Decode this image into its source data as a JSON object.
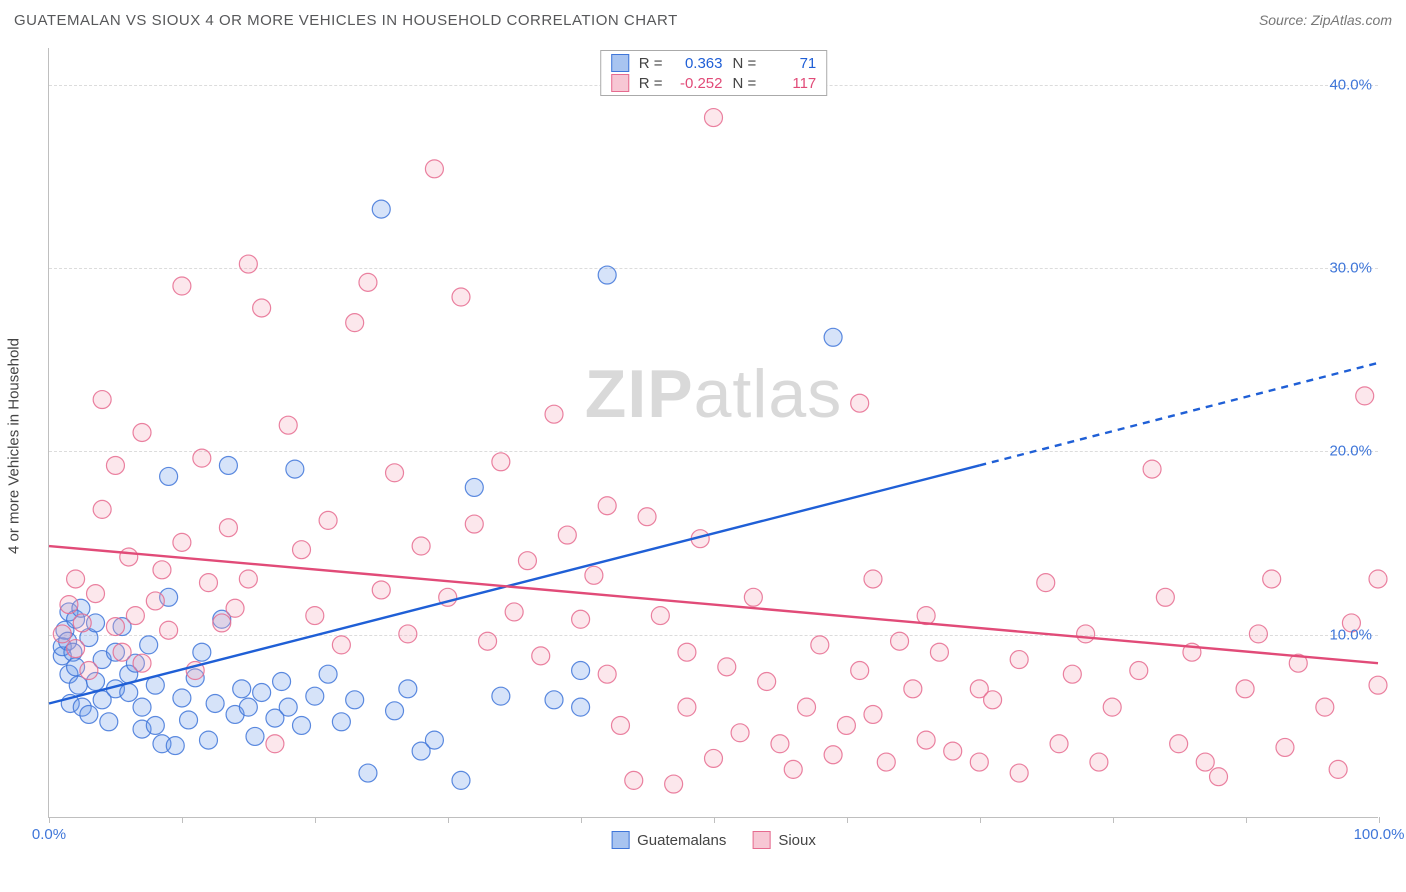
{
  "title": "GUATEMALAN VS SIOUX 4 OR MORE VEHICLES IN HOUSEHOLD CORRELATION CHART",
  "source": "Source: ZipAtlas.com",
  "ylabel": "4 or more Vehicles in Household",
  "watermark": {
    "bold": "ZIP",
    "light": "atlas"
  },
  "chart": {
    "type": "scatter",
    "background_color": "#ffffff",
    "grid_color": "#dcdcdc",
    "axis_color": "#bfbfbf",
    "xlim": [
      0,
      100
    ],
    "ylim": [
      0,
      42
    ],
    "xticks": [
      0,
      10,
      20,
      30,
      40,
      50,
      60,
      70,
      80,
      90,
      100
    ],
    "xtick_labels_shown": {
      "0": "0.0%",
      "100": "100.0%"
    },
    "yticks": [
      10,
      20,
      30,
      40
    ],
    "ytick_labels": {
      "10": "10.0%",
      "20": "20.0%",
      "30": "30.0%",
      "40": "40.0%"
    },
    "tick_label_color": "#3f76d9",
    "tick_label_fontsize": 15,
    "marker_radius": 9,
    "marker_fill_opacity": 0.28,
    "marker_stroke_opacity": 0.85,
    "marker_stroke_width": 1.2,
    "series": [
      {
        "name": "Guatemalans",
        "color": "#6a9ae8",
        "stroke": "#3f76d9",
        "points": [
          [
            1,
            8.8
          ],
          [
            1,
            9.3
          ],
          [
            1.2,
            10.2
          ],
          [
            1.4,
            9.6
          ],
          [
            1.5,
            11.2
          ],
          [
            1.5,
            7.8
          ],
          [
            1.6,
            6.2
          ],
          [
            1.8,
            9.0
          ],
          [
            2,
            8.2
          ],
          [
            2,
            10.8
          ],
          [
            2.2,
            7.2
          ],
          [
            2.4,
            11.4
          ],
          [
            2.5,
            6.0
          ],
          [
            3,
            5.6
          ],
          [
            3,
            9.8
          ],
          [
            3.5,
            7.4
          ],
          [
            3.5,
            10.6
          ],
          [
            4,
            6.4
          ],
          [
            4,
            8.6
          ],
          [
            4.5,
            5.2
          ],
          [
            5,
            7.0
          ],
          [
            5,
            9.0
          ],
          [
            5.5,
            10.4
          ],
          [
            6,
            6.8
          ],
          [
            6,
            7.8
          ],
          [
            6.5,
            8.4
          ],
          [
            7,
            4.8
          ],
          [
            7,
            6.0
          ],
          [
            7.5,
            9.4
          ],
          [
            8,
            5.0
          ],
          [
            8,
            7.2
          ],
          [
            8.5,
            4.0
          ],
          [
            9,
            12.0
          ],
          [
            9,
            18.6
          ],
          [
            9.5,
            3.9
          ],
          [
            10,
            6.5
          ],
          [
            10.5,
            5.3
          ],
          [
            11,
            7.6
          ],
          [
            11.5,
            9.0
          ],
          [
            12,
            4.2
          ],
          [
            12.5,
            6.2
          ],
          [
            13,
            10.8
          ],
          [
            13.5,
            19.2
          ],
          [
            14,
            5.6
          ],
          [
            14.5,
            7.0
          ],
          [
            15,
            6.0
          ],
          [
            15.5,
            4.4
          ],
          [
            16,
            6.8
          ],
          [
            17,
            5.4
          ],
          [
            17.5,
            7.4
          ],
          [
            18,
            6.0
          ],
          [
            18.5,
            19.0
          ],
          [
            19,
            5.0
          ],
          [
            20,
            6.6
          ],
          [
            21,
            7.8
          ],
          [
            22,
            5.2
          ],
          [
            23,
            6.4
          ],
          [
            24,
            2.4
          ],
          [
            25,
            33.2
          ],
          [
            26,
            5.8
          ],
          [
            27,
            7.0
          ],
          [
            28,
            3.6
          ],
          [
            29,
            4.2
          ],
          [
            31,
            2.0
          ],
          [
            32,
            18.0
          ],
          [
            34,
            6.6
          ],
          [
            38,
            6.4
          ],
          [
            40,
            6.0
          ],
          [
            40,
            8.0
          ],
          [
            42,
            29.6
          ],
          [
            59,
            26.2
          ]
        ],
        "trend": {
          "solid": {
            "x1": 0,
            "y1": 6.2,
            "x2": 70,
            "y2": 19.2
          },
          "dashed": {
            "x1": 70,
            "y1": 19.2,
            "x2": 100,
            "y2": 24.8
          },
          "color": "#1f5fd6",
          "width": 2.4
        },
        "stats": {
          "R": "0.363",
          "N": "71"
        }
      },
      {
        "name": "Sioux",
        "color": "#f4a8bb",
        "stroke": "#e66b8f",
        "points": [
          [
            1,
            10.0
          ],
          [
            1.5,
            11.6
          ],
          [
            2,
            9.2
          ],
          [
            2,
            13.0
          ],
          [
            2.5,
            10.6
          ],
          [
            3,
            8.0
          ],
          [
            3.5,
            12.2
          ],
          [
            4,
            22.8
          ],
          [
            4,
            16.8
          ],
          [
            5,
            10.4
          ],
          [
            5,
            19.2
          ],
          [
            5.5,
            9.0
          ],
          [
            6,
            14.2
          ],
          [
            6.5,
            11.0
          ],
          [
            7,
            8.4
          ],
          [
            7,
            21.0
          ],
          [
            8,
            11.8
          ],
          [
            8.5,
            13.5
          ],
          [
            9,
            10.2
          ],
          [
            10,
            29.0
          ],
          [
            10,
            15.0
          ],
          [
            11,
            8.0
          ],
          [
            11.5,
            19.6
          ],
          [
            12,
            12.8
          ],
          [
            13,
            10.6
          ],
          [
            13.5,
            15.8
          ],
          [
            14,
            11.4
          ],
          [
            15,
            30.2
          ],
          [
            15,
            13.0
          ],
          [
            16,
            27.8
          ],
          [
            17,
            4.0
          ],
          [
            18,
            21.4
          ],
          [
            19,
            14.6
          ],
          [
            20,
            11.0
          ],
          [
            21,
            16.2
          ],
          [
            22,
            9.4
          ],
          [
            23,
            27.0
          ],
          [
            24,
            29.2
          ],
          [
            25,
            12.4
          ],
          [
            26,
            18.8
          ],
          [
            27,
            10.0
          ],
          [
            28,
            14.8
          ],
          [
            29,
            35.4
          ],
          [
            30,
            12.0
          ],
          [
            31,
            28.4
          ],
          [
            32,
            16.0
          ],
          [
            33,
            9.6
          ],
          [
            34,
            19.4
          ],
          [
            35,
            11.2
          ],
          [
            36,
            14.0
          ],
          [
            37,
            8.8
          ],
          [
            38,
            22.0
          ],
          [
            39,
            15.4
          ],
          [
            40,
            10.8
          ],
          [
            41,
            13.2
          ],
          [
            42,
            7.8
          ],
          [
            42,
            17.0
          ],
          [
            43,
            5.0
          ],
          [
            44,
            2.0
          ],
          [
            45,
            16.4
          ],
          [
            46,
            11.0
          ],
          [
            47,
            1.8
          ],
          [
            48,
            9.0
          ],
          [
            48,
            6.0
          ],
          [
            49,
            15.2
          ],
          [
            50,
            3.2
          ],
          [
            50,
            38.2
          ],
          [
            51,
            8.2
          ],
          [
            52,
            4.6
          ],
          [
            53,
            12.0
          ],
          [
            54,
            7.4
          ],
          [
            55,
            4.0
          ],
          [
            56,
            2.6
          ],
          [
            57,
            6.0
          ],
          [
            58,
            9.4
          ],
          [
            59,
            3.4
          ],
          [
            60,
            5.0
          ],
          [
            61,
            22.6
          ],
          [
            61,
            8.0
          ],
          [
            62,
            5.6
          ],
          [
            62,
            13.0
          ],
          [
            63,
            3.0
          ],
          [
            64,
            9.6
          ],
          [
            65,
            7.0
          ],
          [
            66,
            4.2
          ],
          [
            66,
            11.0
          ],
          [
            67,
            9.0
          ],
          [
            68,
            3.6
          ],
          [
            70,
            7.0
          ],
          [
            70,
            3.0
          ],
          [
            71,
            6.4
          ],
          [
            73,
            8.6
          ],
          [
            73,
            2.4
          ],
          [
            75,
            12.8
          ],
          [
            76,
            4.0
          ],
          [
            77,
            7.8
          ],
          [
            78,
            10.0
          ],
          [
            79,
            3.0
          ],
          [
            80,
            6.0
          ],
          [
            82,
            8.0
          ],
          [
            83,
            19.0
          ],
          [
            84,
            12.0
          ],
          [
            85,
            4.0
          ],
          [
            86,
            9.0
          ],
          [
            87,
            3.0
          ],
          [
            88,
            2.2
          ],
          [
            90,
            7.0
          ],
          [
            91,
            10.0
          ],
          [
            92,
            13.0
          ],
          [
            93,
            3.8
          ],
          [
            94,
            8.4
          ],
          [
            96,
            6.0
          ],
          [
            97,
            2.6
          ],
          [
            98,
            10.6
          ],
          [
            99,
            23.0
          ],
          [
            100,
            7.2
          ],
          [
            100,
            13.0
          ]
        ],
        "trend": {
          "solid": {
            "x1": 0,
            "y1": 14.8,
            "x2": 100,
            "y2": 8.4
          },
          "color": "#e14b78",
          "width": 2.4
        },
        "stats": {
          "R": "-0.252",
          "N": "117"
        }
      }
    ]
  },
  "stats_box": {
    "r_label": "R =",
    "n_label": "N ="
  },
  "legend": [
    {
      "label": "Guatemalans",
      "fill": "#a8c4f0",
      "border": "#3f76d9"
    },
    {
      "label": "Sioux",
      "fill": "#f7c7d4",
      "border": "#e66b8f"
    }
  ]
}
